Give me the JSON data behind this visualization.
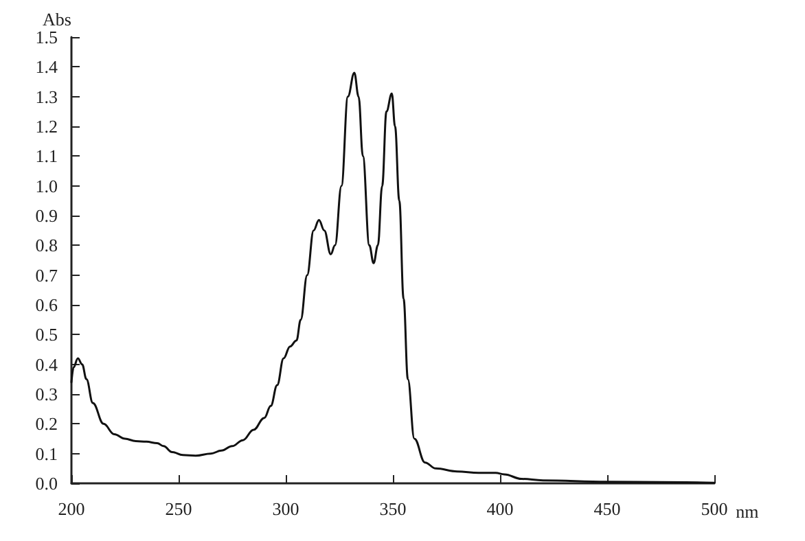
{
  "chart_data": {
    "type": "line",
    "xlabel": "nm",
    "ylabel": "Abs",
    "x": [
      200,
      201,
      203,
      205,
      207,
      210,
      215,
      220,
      225,
      230,
      235,
      240,
      243,
      247,
      252,
      258,
      265,
      270,
      275,
      280,
      285,
      290,
      293,
      296,
      299,
      302,
      305,
      307,
      310,
      313,
      315.5,
      318,
      321,
      323,
      326,
      329,
      332,
      334,
      336,
      339,
      341,
      343,
      345,
      347,
      349.5,
      351,
      353,
      355,
      357,
      360,
      365,
      370,
      380,
      390,
      398,
      402,
      410,
      420,
      450,
      500
    ],
    "series": [
      {
        "color": "#111111",
        "values": [
          0.34,
          0.39,
          0.42,
          0.4,
          0.35,
          0.27,
          0.2,
          0.165,
          0.15,
          0.142,
          0.14,
          0.135,
          0.125,
          0.105,
          0.095,
          0.093,
          0.1,
          0.11,
          0.125,
          0.145,
          0.18,
          0.22,
          0.26,
          0.33,
          0.42,
          0.46,
          0.48,
          0.55,
          0.7,
          0.85,
          0.885,
          0.85,
          0.77,
          0.8,
          1.0,
          1.3,
          1.38,
          1.3,
          1.1,
          0.8,
          0.74,
          0.8,
          1.0,
          1.25,
          1.31,
          1.2,
          0.95,
          0.62,
          0.35,
          0.15,
          0.07,
          0.05,
          0.04,
          0.035,
          0.035,
          0.03,
          0.015,
          0.01,
          0.005,
          0.002
        ]
      }
    ],
    "xlim": [
      200,
      500
    ],
    "xticks": [
      200,
      250,
      300,
      350,
      400,
      450,
      500
    ],
    "ylim": [
      0,
      1.5
    ],
    "yticks": [
      {
        "value": 0,
        "label": "0.0"
      },
      0.1,
      0.2,
      0.3,
      0.4,
      0.5,
      0.6,
      0.7,
      0.8,
      0.9,
      {
        "value": 1,
        "label": "1.0"
      },
      1.1,
      1.2,
      1.3,
      1.4,
      1.5
    ],
    "grid": false,
    "marker": "none",
    "line_style": "solid"
  }
}
